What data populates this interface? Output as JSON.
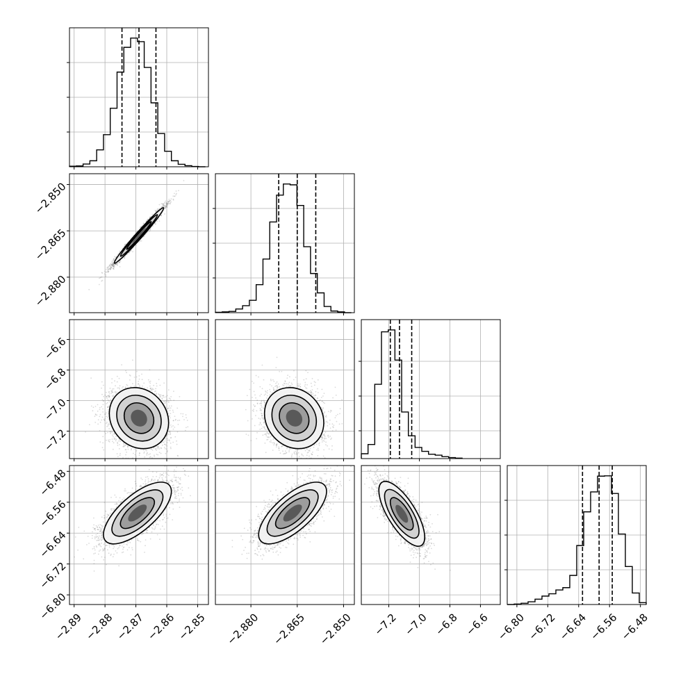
{
  "chart_data": {
    "type": "corner",
    "parameters": [
      {
        "range": [
          -2.8915,
          -2.8465
        ],
        "ticks": [
          {
            "v": -2.89,
            "label": "−2.89"
          },
          {
            "v": -2.88,
            "label": "−2.88"
          },
          {
            "v": -2.87,
            "label": "−2.87"
          },
          {
            "v": -2.86,
            "label": "−2.86"
          },
          {
            "v": -2.85,
            "label": "−2.85"
          }
        ],
        "quantiles": [
          -2.8745,
          -2.869,
          -2.8635
        ]
      },
      {
        "range": [
          -2.8915,
          -2.8465
        ],
        "ticks": [
          {
            "v": -2.88,
            "label": "−2.880"
          },
          {
            "v": -2.865,
            "label": "−2.865"
          },
          {
            "v": -2.85,
            "label": "−2.850"
          }
        ],
        "quantiles": [
          -2.871,
          -2.865,
          -2.859
        ]
      },
      {
        "range": [
          -7.38,
          -6.47
        ],
        "ticks": [
          {
            "v": -7.2,
            "label": "−7.2"
          },
          {
            "v": -7.0,
            "label": "−7.0"
          },
          {
            "v": -6.8,
            "label": "−6.8"
          },
          {
            "v": -6.6,
            "label": "−6.6"
          }
        ],
        "quantiles": [
          -7.19,
          -7.13,
          -7.05
        ]
      },
      {
        "range": [
          -6.825,
          -6.465
        ],
        "ticks": [
          {
            "v": -6.8,
            "label": "−6.80"
          },
          {
            "v": -6.72,
            "label": "−6.72"
          },
          {
            "v": -6.64,
            "label": "−6.64"
          },
          {
            "v": -6.56,
            "label": "−6.56"
          },
          {
            "v": -6.48,
            "label": "−6.48"
          }
        ],
        "quantiles": [
          -6.63,
          -6.587,
          -6.553
        ]
      }
    ],
    "histograms": [
      {
        "param": 0,
        "edges": [
          -2.8915,
          -2.8893,
          -2.8871,
          -2.8849,
          -2.8827,
          -2.8805,
          -2.8783,
          -2.8761,
          -2.8739,
          -2.8717,
          -2.8695,
          -2.8673,
          -2.8651,
          -2.8629,
          -2.8607,
          -2.8585,
          -2.8563,
          -2.8541,
          -2.8519,
          -2.8497,
          -2.8475
        ],
        "counts": [
          2,
          3,
          10,
          22,
          62,
          118,
          215,
          348,
          439,
          473,
          460,
          365,
          235,
          122,
          57,
          22,
          9,
          4,
          1,
          0
        ]
      },
      {
        "param": 1,
        "edges": [
          -2.8915,
          -2.8893,
          -2.8871,
          -2.8849,
          -2.8827,
          -2.8805,
          -2.8783,
          -2.8761,
          -2.8739,
          -2.8717,
          -2.8695,
          -2.8673,
          -2.8651,
          -2.8629,
          -2.8607,
          -2.8585,
          -2.8563,
          -2.8541,
          -2.8519,
          -2.8497,
          -2.8475
        ],
        "counts": [
          1,
          2,
          3,
          9,
          17,
          30,
          68,
          130,
          220,
          285,
          312,
          310,
          260,
          160,
          95,
          48,
          15,
          4,
          2,
          0
        ]
      },
      {
        "param": 2,
        "edges": [
          -7.38,
          -7.336,
          -7.292,
          -7.248,
          -7.204,
          -7.16,
          -7.116,
          -7.072,
          -7.028,
          -6.984,
          -6.94,
          -6.896,
          -6.852,
          -6.808,
          -6.764,
          -6.72
        ],
        "counts": [
          10,
          29,
          153,
          261,
          265,
          203,
          96,
          47,
          23,
          15,
          9,
          7,
          4,
          2,
          1
        ]
      },
      {
        "param": 3,
        "edges": [
          -6.825,
          -6.807,
          -6.789,
          -6.771,
          -6.753,
          -6.735,
          -6.717,
          -6.699,
          -6.681,
          -6.663,
          -6.645,
          -6.627,
          -6.609,
          -6.591,
          -6.573,
          -6.555,
          -6.537,
          -6.519,
          -6.501,
          -6.483,
          -6.465
        ],
        "counts": [
          0,
          3,
          8,
          18,
          35,
          55,
          70,
          95,
          110,
          190,
          385,
          605,
          735,
          838,
          840,
          725,
          460,
          248,
          75,
          12
        ]
      }
    ],
    "pairs": [
      {
        "x": 0,
        "y": 1,
        "mean": [
          -2.869,
          -2.8665
        ],
        "sd": [
          0.004,
          0.0045
        ],
        "rho": 0.985,
        "n": 3200,
        "contourScale": [
          0.55,
          1.0,
          1.5,
          2.0
        ]
      },
      {
        "x": 0,
        "y": 2,
        "mean": [
          -2.869,
          -7.115
        ],
        "sd": [
          0.0048,
          0.1
        ],
        "rho": -0.15,
        "n": 3200,
        "contourScale": [
          0.55,
          1.0,
          1.5,
          2.0
        ]
      },
      {
        "x": 1,
        "y": 2,
        "mean": [
          -2.866,
          -7.115
        ],
        "sd": [
          0.0048,
          0.1
        ],
        "rho": -0.15,
        "n": 3200,
        "contourScale": [
          0.55,
          1.0,
          1.5,
          2.0
        ]
      },
      {
        "x": 0,
        "y": 3,
        "mean": [
          -2.8695,
          -6.588
        ],
        "sd": [
          0.0055,
          0.04
        ],
        "rho": 0.7,
        "n": 3200,
        "contourScale": [
          0.55,
          1.0,
          1.5,
          2.0
        ]
      },
      {
        "x": 1,
        "y": 3,
        "mean": [
          -2.8665,
          -6.588
        ],
        "sd": [
          0.0055,
          0.04
        ],
        "rho": 0.7,
        "n": 3200,
        "contourScale": [
          0.55,
          1.0,
          1.5,
          2.0
        ]
      },
      {
        "x": 2,
        "y": 3,
        "mean": [
          -7.115,
          -6.59
        ],
        "sd": [
          0.075,
          0.042
        ],
        "rho": -0.72,
        "n": 3200,
        "contourScale": [
          0.55,
          1.0,
          1.5,
          2.0
        ]
      }
    ],
    "hist_grid_values": [
      [
        0.25,
        0.5,
        0.75
      ],
      [
        0.25,
        0.5,
        0.75
      ],
      [
        0.2,
        0.45,
        0.7
      ],
      [
        0.25,
        0.5,
        0.75
      ]
    ]
  }
}
